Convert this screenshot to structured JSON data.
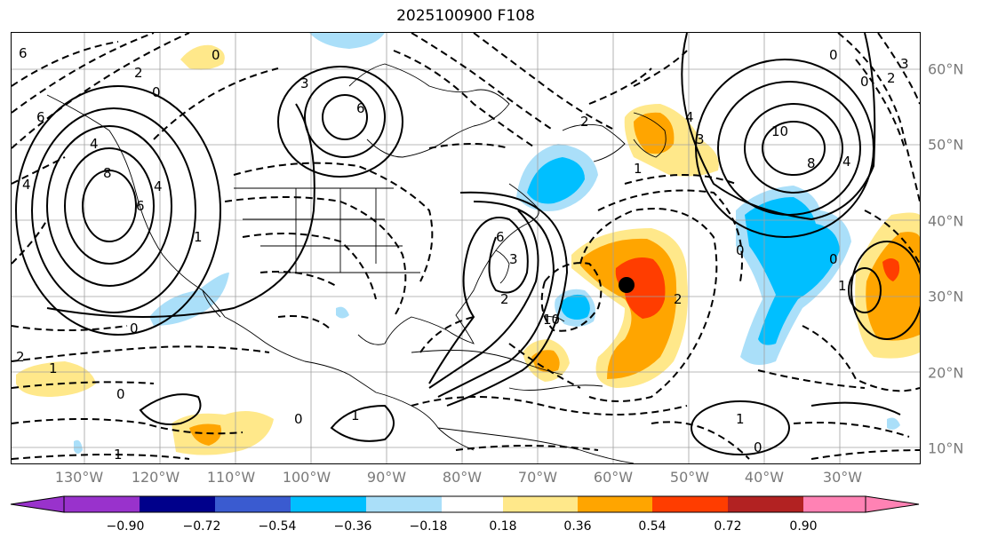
{
  "title": "2025100900 F108",
  "lon_labels": [
    "130°W",
    "120°W",
    "110°W",
    "100°W",
    "90°W",
    "80°W",
    "70°W",
    "60°W",
    "50°W",
    "40°W",
    "30°W"
  ],
  "lat_labels": [
    "60°N",
    "50°N",
    "40°N",
    "30°N",
    "20°N",
    "10°N"
  ],
  "colorbar": {
    "ticks": [
      "−0.90",
      "−0.72",
      "−0.54",
      "−0.36",
      "−0.18",
      "0.18",
      "0.36",
      "0.54",
      "0.72",
      "0.90"
    ],
    "colors": [
      "#9932cc",
      "#00008b",
      "#3a5bd0",
      "#00bfff",
      "#aadff9",
      "#ffffff",
      "#ffe88a",
      "#ffa500",
      "#ff3d00",
      "#b22222",
      "#ff82b4"
    ]
  },
  "contour_labels": [
    "6",
    "2",
    "0",
    "4",
    "6",
    "4",
    "8",
    "6",
    "4",
    "1",
    "3",
    "0",
    "6",
    "2",
    "10",
    "3",
    "4",
    "1",
    "8",
    "6",
    "0",
    "0",
    "2",
    "4",
    "3",
    "0",
    "0",
    "1",
    "2",
    "0",
    "1",
    "0",
    "1",
    "2",
    "2",
    "0",
    "1",
    "0",
    "1",
    "10",
    "3"
  ],
  "markers": [
    {
      "name": "storm-center",
      "color": "#000000"
    }
  ]
}
